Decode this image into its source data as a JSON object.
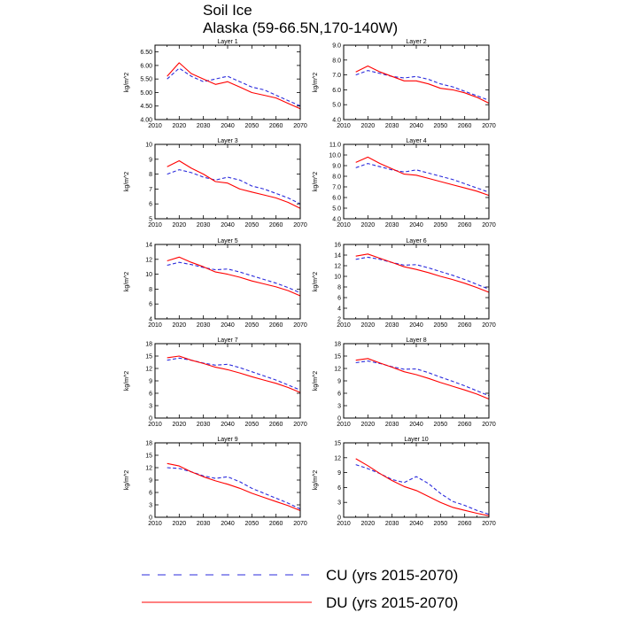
{
  "figure": {
    "title_line1": "Soil Ice",
    "title_line2": "Alaska (59-66.5N,170-140W)"
  },
  "legend": {
    "entries": [
      {
        "label": "CU (yrs 2015-2070)",
        "color": "#2b2bdc",
        "dash": "dashed"
      },
      {
        "label": "DU (yrs 2015-2070)",
        "color": "#ff0000",
        "dash": "solid"
      }
    ]
  },
  "chart_data": [
    {
      "type": "line",
      "title": "Layer 1",
      "xlabel": "",
      "ylabel": "kg/m^2",
      "xlim": [
        2010,
        2070
      ],
      "xticks": [
        2010,
        2020,
        2030,
        2040,
        2050,
        2060,
        2070
      ],
      "ylim": [
        4.0,
        6.75
      ],
      "yticks": [
        4.0,
        4.5,
        5.0,
        5.5,
        6.0,
        6.5
      ],
      "ytick_decimals": 2,
      "x": [
        2015,
        2020,
        2025,
        2030,
        2035,
        2040,
        2045,
        2050,
        2055,
        2060,
        2065,
        2070
      ],
      "series": [
        {
          "name": "CU (yrs 2015-2070)",
          "values": [
            5.5,
            5.9,
            5.6,
            5.4,
            5.5,
            5.6,
            5.4,
            5.2,
            5.1,
            4.9,
            4.7,
            4.5
          ]
        },
        {
          "name": "DU (yrs 2015-2070)",
          "values": [
            5.6,
            6.1,
            5.7,
            5.5,
            5.3,
            5.4,
            5.2,
            5.0,
            4.9,
            4.8,
            4.6,
            4.4
          ]
        }
      ]
    },
    {
      "type": "line",
      "title": "Layer 2",
      "xlabel": "",
      "ylabel": "kg/m^2",
      "xlim": [
        2010,
        2070
      ],
      "xticks": [
        2010,
        2020,
        2030,
        2040,
        2050,
        2060,
        2070
      ],
      "ylim": [
        4.0,
        9.0
      ],
      "yticks": [
        4.0,
        5.0,
        6.0,
        7.0,
        8.0,
        9.0
      ],
      "ytick_decimals": 1,
      "x": [
        2015,
        2020,
        2025,
        2030,
        2035,
        2040,
        2045,
        2050,
        2055,
        2060,
        2065,
        2070
      ],
      "series": [
        {
          "name": "CU (yrs 2015-2070)",
          "values": [
            7.0,
            7.3,
            7.1,
            6.9,
            6.8,
            6.9,
            6.7,
            6.4,
            6.2,
            5.9,
            5.6,
            5.3
          ]
        },
        {
          "name": "DU (yrs 2015-2070)",
          "values": [
            7.2,
            7.6,
            7.2,
            6.9,
            6.6,
            6.6,
            6.4,
            6.1,
            6.0,
            5.8,
            5.5,
            5.1
          ]
        }
      ]
    },
    {
      "type": "line",
      "title": "Layer 3",
      "xlabel": "",
      "ylabel": "kg/m^2",
      "xlim": [
        2010,
        2070
      ],
      "xticks": [
        2010,
        2020,
        2030,
        2040,
        2050,
        2060,
        2070
      ],
      "ylim": [
        5,
        10
      ],
      "yticks": [
        5,
        6,
        7,
        8,
        9,
        10
      ],
      "ytick_decimals": 0,
      "x": [
        2015,
        2020,
        2025,
        2030,
        2035,
        2040,
        2045,
        2050,
        2055,
        2060,
        2065,
        2070
      ],
      "series": [
        {
          "name": "CU (yrs 2015-2070)",
          "values": [
            8.0,
            8.3,
            8.1,
            7.8,
            7.6,
            7.8,
            7.6,
            7.2,
            7.0,
            6.7,
            6.4,
            6.0
          ]
        },
        {
          "name": "DU (yrs 2015-2070)",
          "values": [
            8.5,
            8.9,
            8.4,
            8.0,
            7.5,
            7.4,
            7.0,
            6.8,
            6.6,
            6.4,
            6.1,
            5.7
          ]
        }
      ]
    },
    {
      "type": "line",
      "title": "Layer 4",
      "xlabel": "",
      "ylabel": "kg/m^2",
      "xlim": [
        2010,
        2070
      ],
      "xticks": [
        2010,
        2020,
        2030,
        2040,
        2050,
        2060,
        2070
      ],
      "ylim": [
        4.0,
        11.0
      ],
      "yticks": [
        4.0,
        5.0,
        6.0,
        7.0,
        8.0,
        9.0,
        10.0,
        11.0
      ],
      "ytick_decimals": 1,
      "x": [
        2015,
        2020,
        2025,
        2030,
        2035,
        2040,
        2045,
        2050,
        2055,
        2060,
        2065,
        2070
      ],
      "series": [
        {
          "name": "CU (yrs 2015-2070)",
          "values": [
            8.8,
            9.2,
            8.9,
            8.6,
            8.4,
            8.6,
            8.3,
            8.0,
            7.7,
            7.3,
            6.9,
            6.5
          ]
        },
        {
          "name": "DU (yrs 2015-2070)",
          "values": [
            9.3,
            9.8,
            9.2,
            8.7,
            8.2,
            8.1,
            7.8,
            7.5,
            7.2,
            6.9,
            6.6,
            6.2
          ]
        }
      ]
    },
    {
      "type": "line",
      "title": "Layer 5",
      "xlabel": "",
      "ylabel": "kg/m^2",
      "xlim": [
        2010,
        2070
      ],
      "xticks": [
        2010,
        2020,
        2030,
        2040,
        2050,
        2060,
        2070
      ],
      "ylim": [
        4,
        14
      ],
      "yticks": [
        4,
        6,
        8,
        10,
        12,
        14
      ],
      "ytick_decimals": 0,
      "x": [
        2015,
        2020,
        2025,
        2030,
        2035,
        2040,
        2045,
        2050,
        2055,
        2060,
        2065,
        2070
      ],
      "series": [
        {
          "name": "CU (yrs 2015-2070)",
          "values": [
            11.2,
            11.6,
            11.3,
            10.9,
            10.6,
            10.7,
            10.3,
            9.8,
            9.3,
            8.8,
            8.2,
            7.5
          ]
        },
        {
          "name": "DU (yrs 2015-2070)",
          "values": [
            11.8,
            12.3,
            11.6,
            11.0,
            10.3,
            10.0,
            9.6,
            9.1,
            8.7,
            8.3,
            7.8,
            7.1
          ]
        }
      ]
    },
    {
      "type": "line",
      "title": "Layer 6",
      "xlabel": "",
      "ylabel": "kg/m^2",
      "xlim": [
        2010,
        2070
      ],
      "xticks": [
        2010,
        2020,
        2030,
        2040,
        2050,
        2060,
        2070
      ],
      "ylim": [
        2,
        16
      ],
      "yticks": [
        2,
        4,
        6,
        8,
        10,
        12,
        14,
        16
      ],
      "ytick_decimals": 0,
      "x": [
        2015,
        2020,
        2025,
        2030,
        2035,
        2040,
        2045,
        2050,
        2055,
        2060,
        2065,
        2070
      ],
      "series": [
        {
          "name": "CU (yrs 2015-2070)",
          "values": [
            13.2,
            13.6,
            13.2,
            12.6,
            12.1,
            12.2,
            11.6,
            10.9,
            10.2,
            9.4,
            8.5,
            7.6
          ]
        },
        {
          "name": "DU (yrs 2015-2070)",
          "values": [
            13.8,
            14.2,
            13.4,
            12.6,
            11.8,
            11.3,
            10.7,
            10.0,
            9.4,
            8.7,
            7.9,
            7.0
          ]
        }
      ]
    },
    {
      "type": "line",
      "title": "Layer 7",
      "xlabel": "",
      "ylabel": "kg/m^2",
      "xlim": [
        2010,
        2070
      ],
      "xticks": [
        2010,
        2020,
        2030,
        2040,
        2050,
        2060,
        2070
      ],
      "ylim": [
        0,
        18
      ],
      "yticks": [
        0,
        3,
        6,
        9,
        12,
        15,
        18
      ],
      "ytick_decimals": 0,
      "x": [
        2015,
        2020,
        2025,
        2030,
        2035,
        2040,
        2045,
        2050,
        2055,
        2060,
        2065,
        2070
      ],
      "series": [
        {
          "name": "CU (yrs 2015-2070)",
          "values": [
            14.0,
            14.5,
            14.0,
            13.3,
            12.8,
            13.0,
            12.2,
            11.2,
            10.2,
            9.2,
            8.0,
            6.8
          ]
        },
        {
          "name": "DU (yrs 2015-2070)",
          "values": [
            14.6,
            15.0,
            14.0,
            13.2,
            12.3,
            11.7,
            10.9,
            10.0,
            9.2,
            8.4,
            7.4,
            6.2
          ]
        }
      ]
    },
    {
      "type": "line",
      "title": "Layer 8",
      "xlabel": "",
      "ylabel": "kg/m^2",
      "xlim": [
        2010,
        2070
      ],
      "xticks": [
        2010,
        2020,
        2030,
        2040,
        2050,
        2060,
        2070
      ],
      "ylim": [
        0,
        18
      ],
      "yticks": [
        0,
        3,
        6,
        9,
        12,
        15,
        18
      ],
      "ytick_decimals": 0,
      "x": [
        2015,
        2020,
        2025,
        2030,
        2035,
        2040,
        2045,
        2050,
        2055,
        2060,
        2065,
        2070
      ],
      "series": [
        {
          "name": "CU (yrs 2015-2070)",
          "values": [
            13.4,
            13.8,
            13.2,
            12.4,
            11.8,
            11.9,
            11.0,
            9.9,
            8.9,
            7.8,
            6.6,
            5.4
          ]
        },
        {
          "name": "DU (yrs 2015-2070)",
          "values": [
            14.0,
            14.4,
            13.3,
            12.3,
            11.2,
            10.5,
            9.6,
            8.6,
            7.7,
            6.8,
            5.8,
            4.6
          ]
        }
      ]
    },
    {
      "type": "line",
      "title": "Layer 9",
      "xlabel": "",
      "ylabel": "kg/m^2",
      "xlim": [
        2010,
        2070
      ],
      "xticks": [
        2010,
        2020,
        2030,
        2040,
        2050,
        2060,
        2070
      ],
      "ylim": [
        0,
        18
      ],
      "yticks": [
        0,
        3,
        6,
        9,
        12,
        15,
        18
      ],
      "ytick_decimals": 0,
      "x": [
        2015,
        2020,
        2025,
        2030,
        2035,
        2040,
        2045,
        2050,
        2055,
        2060,
        2065,
        2070
      ],
      "series": [
        {
          "name": "CU (yrs 2015-2070)",
          "values": [
            12.0,
            11.8,
            11.0,
            10.0,
            9.4,
            9.8,
            8.6,
            7.0,
            5.8,
            4.6,
            3.4,
            2.0
          ]
        },
        {
          "name": "DU (yrs 2015-2070)",
          "values": [
            13.0,
            12.4,
            11.0,
            9.8,
            8.8,
            8.0,
            7.0,
            5.8,
            4.8,
            3.8,
            2.8,
            1.6
          ]
        }
      ]
    },
    {
      "type": "line",
      "title": "Layer 10",
      "xlabel": "",
      "ylabel": "kg/m^2",
      "xlim": [
        2010,
        2070
      ],
      "xticks": [
        2010,
        2020,
        2030,
        2040,
        2050,
        2060,
        2070
      ],
      "ylim": [
        0,
        15
      ],
      "yticks": [
        0,
        3,
        6,
        9,
        12,
        15
      ],
      "ytick_decimals": 0,
      "x": [
        2015,
        2020,
        2025,
        2030,
        2035,
        2040,
        2045,
        2050,
        2055,
        2060,
        2065,
        2070
      ],
      "series": [
        {
          "name": "CU (yrs 2015-2070)",
          "values": [
            10.6,
            9.8,
            8.8,
            7.6,
            7.0,
            8.2,
            6.8,
            4.8,
            3.2,
            2.4,
            1.4,
            0.6
          ]
        },
        {
          "name": "DU (yrs 2015-2070)",
          "values": [
            11.8,
            10.4,
            8.8,
            7.4,
            6.2,
            5.4,
            4.2,
            3.0,
            2.0,
            1.4,
            0.8,
            0.3
          ]
        }
      ]
    }
  ]
}
